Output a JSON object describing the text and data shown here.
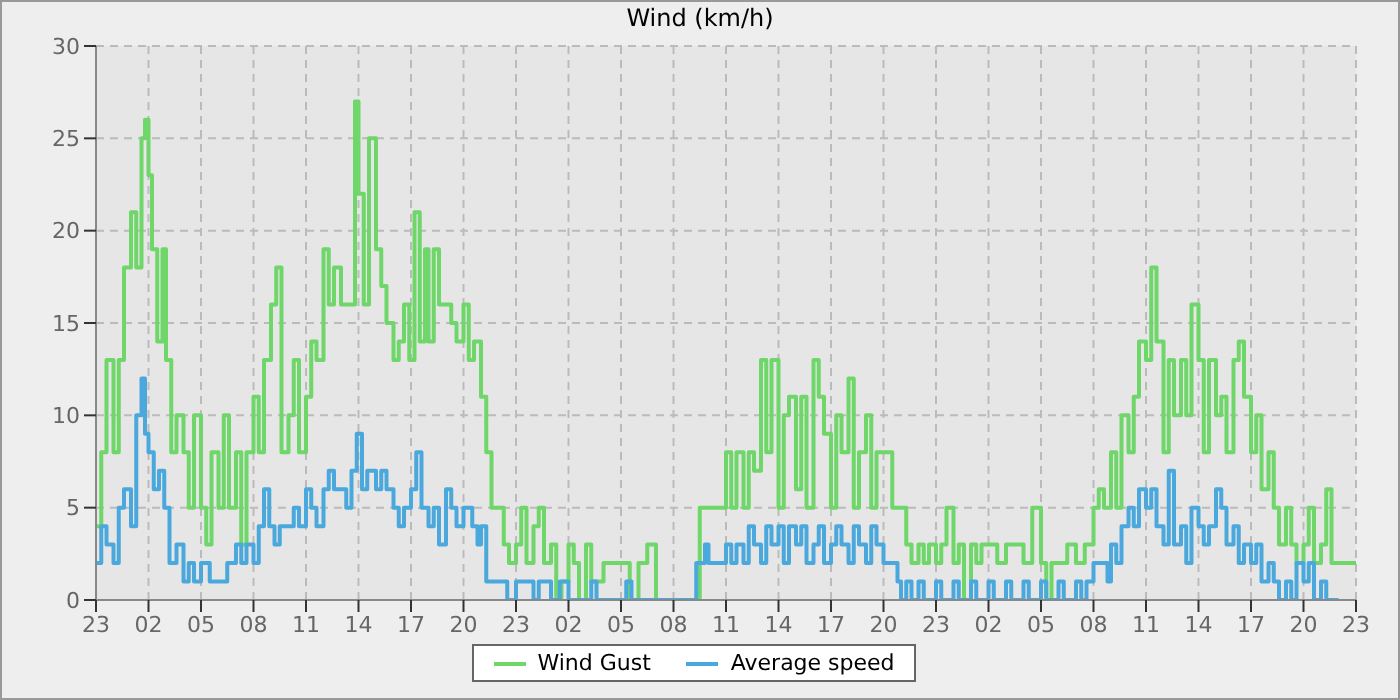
{
  "chart_data": {
    "type": "step",
    "title": "Wind (km/h)",
    "xlim": [
      "--01-01T23:00",
      "--01-04T23:00"
    ],
    "xticks": [
      {
        "value": "--01-01T23:00",
        "label": "23"
      },
      {
        "value": "--01-02T02:00",
        "label": "02"
      },
      {
        "value": "--01-02T05:00",
        "label": "05"
      },
      {
        "value": "--01-02T08:00",
        "label": "08"
      },
      {
        "value": "--01-02T11:00",
        "label": "11"
      },
      {
        "value": "--01-02T14:00",
        "label": "14"
      },
      {
        "value": "--01-02T17:00",
        "label": "17"
      },
      {
        "value": "--01-02T20:00",
        "label": "20"
      },
      {
        "value": "--01-02T23:00",
        "label": "23"
      },
      {
        "value": "--01-03T02:00",
        "label": "02"
      },
      {
        "value": "--01-03T05:00",
        "label": "05"
      },
      {
        "value": "--01-03T08:00",
        "label": "08"
      },
      {
        "value": "--01-03T11:00",
        "label": "11"
      },
      {
        "value": "--01-03T14:00",
        "label": "14"
      },
      {
        "value": "--01-03T17:00",
        "label": "17"
      },
      {
        "value": "--01-03T20:00",
        "label": "20"
      },
      {
        "value": "--01-03T23:00",
        "label": "23"
      },
      {
        "value": "--01-04T02:00",
        "label": "02"
      },
      {
        "value": "--01-04T05:00",
        "label": "05"
      },
      {
        "value": "--01-04T08:00",
        "label": "08"
      },
      {
        "value": "--01-04T11:00",
        "label": "11"
      },
      {
        "value": "--01-04T14:00",
        "label": "14"
      },
      {
        "value": "--01-04T17:00",
        "label": "17"
      },
      {
        "value": "--01-04T20:00",
        "label": "20"
      },
      {
        "value": "--01-04T23:00",
        "label": "23"
      }
    ],
    "ylim": [
      0,
      30
    ],
    "yticks": [
      0,
      5,
      10,
      15,
      20,
      25,
      30
    ],
    "grid": true,
    "legend": "bottom",
    "marker": "none",
    "line_style": "solid",
    "series": [
      {
        "name": "Wind Gust",
        "color": "#6fd66a",
        "x": [
          "--01-01T23:00",
          "--01-01T23:18",
          "--01-01T23:36",
          "--01-02T00:00",
          "--01-02T00:18",
          "--01-02T00:36",
          "--01-02T01:00",
          "--01-02T01:18",
          "--01-02T01:36",
          "--01-02T01:48",
          "--01-02T02:00",
          "--01-02T02:12",
          "--01-02T02:30",
          "--01-02T02:48",
          "--01-02T03:00",
          "--01-02T03:18",
          "--01-02T03:36",
          "--01-02T04:00",
          "--01-02T04:18",
          "--01-02T04:36",
          "--01-02T05:00",
          "--01-02T05:18",
          "--01-02T05:36",
          "--01-02T06:00",
          "--01-02T06:18",
          "--01-02T06:36",
          "--01-02T07:00",
          "--01-02T07:18",
          "--01-02T07:36",
          "--01-02T08:00",
          "--01-02T08:18",
          "--01-02T08:36",
          "--01-02T09:00",
          "--01-02T09:18",
          "--01-02T09:36",
          "--01-02T10:00",
          "--01-02T10:18",
          "--01-02T10:36",
          "--01-02T11:00",
          "--01-02T11:18",
          "--01-02T11:36",
          "--01-02T12:00",
          "--01-02T12:18",
          "--01-02T12:36",
          "--01-02T13:00",
          "--01-02T13:30",
          "--01-02T13:48",
          "--01-02T14:00",
          "--01-02T14:18",
          "--01-02T14:36",
          "--01-02T15:00",
          "--01-02T15:18",
          "--01-02T15:36",
          "--01-02T16:00",
          "--01-02T16:18",
          "--01-02T16:36",
          "--01-02T16:54",
          "--01-02T17:12",
          "--01-02T17:30",
          "--01-02T17:48",
          "--01-02T18:00",
          "--01-02T18:18",
          "--01-02T18:36",
          "--01-02T19:00",
          "--01-02T19:18",
          "--01-02T19:36",
          "--01-02T20:00",
          "--01-02T20:18",
          "--01-02T20:36",
          "--01-02T21:00",
          "--01-02T21:18",
          "--01-02T21:36",
          "--01-02T22:00",
          "--01-02T22:18",
          "--01-02T22:36",
          "--01-02T23:00",
          "--01-02T23:18",
          "--01-02T23:36",
          "--01-03T00:00",
          "--01-03T00:18",
          "--01-03T00:36",
          "--01-03T01:00",
          "--01-03T01:18",
          "--01-03T01:36",
          "--01-03T02:00",
          "--01-03T02:18",
          "--01-03T02:36",
          "--01-03T03:00",
          "--01-03T03:18",
          "--01-03T03:36",
          "--01-03T04:00",
          "--01-03T05:00",
          "--01-03T05:30",
          "--01-03T06:00",
          "--01-03T06:30",
          "--01-03T07:00",
          "--01-03T07:18",
          "--01-03T09:30",
          "--01-03T10:30",
          "--01-03T11:00",
          "--01-03T11:18",
          "--01-03T11:36",
          "--01-03T12:00",
          "--01-03T12:18",
          "--01-03T12:36",
          "--01-03T13:00",
          "--01-03T13:18",
          "--01-03T13:36",
          "--01-03T14:00",
          "--01-03T14:18",
          "--01-03T14:36",
          "--01-03T15:00",
          "--01-03T15:18",
          "--01-03T15:36",
          "--01-03T16:00",
          "--01-03T16:18",
          "--01-03T16:36",
          "--01-03T17:00",
          "--01-03T17:18",
          "--01-03T17:36",
          "--01-03T18:00",
          "--01-03T18:18",
          "--01-03T18:36",
          "--01-03T19:00",
          "--01-03T19:18",
          "--01-03T19:36",
          "--01-03T20:00",
          "--01-03T20:30",
          "--01-03T21:00",
          "--01-03T21:18",
          "--01-03T21:36",
          "--01-03T22:00",
          "--01-03T22:18",
          "--01-03T22:36",
          "--01-03T23:00",
          "--01-03T23:18",
          "--01-03T23:36",
          "--01-04T00:00",
          "--01-04T00:18",
          "--01-04T00:36",
          "--01-04T01:00",
          "--01-04T01:18",
          "--01-04T01:36",
          "--01-04T02:00",
          "--01-04T02:30",
          "--01-04T03:00",
          "--01-04T03:30",
          "--01-04T04:00",
          "--01-04T04:30",
          "--01-04T05:00",
          "--01-04T05:18",
          "--01-04T05:36",
          "--01-04T06:00",
          "--01-04T06:30",
          "--01-04T07:00",
          "--01-04T07:30",
          "--01-04T08:00",
          "--01-04T08:18",
          "--01-04T08:36",
          "--01-04T09:00",
          "--01-04T09:18",
          "--01-04T09:36",
          "--01-04T10:00",
          "--01-04T10:18",
          "--01-04T10:36",
          "--01-04T11:00",
          "--01-04T11:18",
          "--01-04T11:36",
          "--01-04T12:00",
          "--01-04T12:18",
          "--01-04T12:36",
          "--01-04T13:00",
          "--01-04T13:18",
          "--01-04T13:36",
          "--01-04T14:00",
          "--01-04T14:18",
          "--01-04T14:36",
          "--01-04T15:00",
          "--01-04T15:18",
          "--01-04T15:36",
          "--01-04T16:00",
          "--01-04T16:18",
          "--01-04T16:36",
          "--01-04T17:00",
          "--01-04T17:18",
          "--01-04T17:36",
          "--01-04T18:00",
          "--01-04T18:18",
          "--01-04T18:36",
          "--01-04T19:00",
          "--01-04T19:18",
          "--01-04T19:36",
          "--01-04T20:00",
          "--01-04T20:18",
          "--01-04T20:36",
          "--01-04T21:00",
          "--01-04T21:18",
          "--01-04T21:36",
          "--01-04T22:00",
          "--01-04T23:00"
        ],
        "values": [
          4,
          8,
          13,
          8,
          13,
          18,
          21,
          18,
          25,
          26,
          23,
          19,
          14,
          19,
          13,
          8,
          10,
          8,
          5,
          10,
          5,
          3,
          8,
          5,
          10,
          5,
          8,
          3,
          8,
          11,
          8,
          13,
          16,
          18,
          8,
          10,
          13,
          8,
          11,
          14,
          13,
          19,
          16,
          18,
          16,
          16,
          27,
          22,
          16,
          25,
          19,
          17,
          15,
          13,
          14,
          16,
          13,
          21,
          14,
          19,
          14,
          19,
          16,
          16,
          15,
          14,
          16,
          13,
          14,
          11,
          8,
          5,
          5,
          3,
          2,
          3,
          5,
          2,
          4,
          5,
          2,
          3,
          0,
          1,
          3,
          2,
          0,
          3,
          1,
          1,
          2,
          2,
          0,
          2,
          3,
          0,
          0,
          5,
          5,
          8,
          5,
          8,
          5,
          8,
          7,
          13,
          8,
          13,
          5,
          10,
          11,
          6,
          11,
          5,
          13,
          11,
          9,
          5,
          10,
          8,
          12,
          5,
          8,
          10,
          5,
          8,
          8,
          5,
          5,
          3,
          2,
          3,
          2,
          3,
          2,
          3,
          5,
          2,
          3,
          0,
          3,
          2,
          3,
          3,
          2,
          3,
          3,
          2,
          5,
          2,
          0,
          2,
          2,
          3,
          2,
          3,
          5,
          6,
          5,
          8,
          5,
          10,
          8,
          11,
          14,
          13,
          18,
          14,
          8,
          13,
          10,
          13,
          10,
          16,
          13,
          8,
          13,
          10,
          11,
          8,
          13,
          14,
          11,
          8,
          10,
          6,
          8,
          5,
          3,
          5,
          3,
          2,
          3,
          5,
          2,
          3,
          6,
          2,
          2,
          2
        ]
      },
      {
        "name": "Average speed",
        "color": "#4aa8dc",
        "x": [
          "--01-01T23:00",
          "--01-01T23:18",
          "--01-01T23:36",
          "--01-02T00:00",
          "--01-02T00:18",
          "--01-02T00:36",
          "--01-02T01:00",
          "--01-02T01:18",
          "--01-02T01:36",
          "--01-02T01:48",
          "--01-02T02:00",
          "--01-02T02:18",
          "--01-02T02:36",
          "--01-02T02:54",
          "--01-02T03:12",
          "--01-02T03:36",
          "--01-02T04:00",
          "--01-02T04:18",
          "--01-02T04:36",
          "--01-02T05:00",
          "--01-02T05:30",
          "--01-02T06:00",
          "--01-02T06:30",
          "--01-02T07:00",
          "--01-02T07:18",
          "--01-02T07:36",
          "--01-02T08:00",
          "--01-02T08:18",
          "--01-02T08:36",
          "--01-02T08:54",
          "--01-02T09:12",
          "--01-02T09:30",
          "--01-02T10:00",
          "--01-02T10:18",
          "--01-02T10:36",
          "--01-02T11:00",
          "--01-02T11:18",
          "--01-02T11:36",
          "--01-02T12:00",
          "--01-02T12:18",
          "--01-02T12:36",
          "--01-02T13:00",
          "--01-02T13:18",
          "--01-02T13:36",
          "--01-02T13:54",
          "--01-02T14:12",
          "--01-02T14:30",
          "--01-02T15:00",
          "--01-02T15:18",
          "--01-02T15:36",
          "--01-02T16:00",
          "--01-02T16:18",
          "--01-02T16:36",
          "--01-02T17:00",
          "--01-02T17:18",
          "--01-02T17:36",
          "--01-02T18:00",
          "--01-02T18:18",
          "--01-02T18:36",
          "--01-02T19:00",
          "--01-02T19:18",
          "--01-02T19:36",
          "--01-02T20:00",
          "--01-02T20:30",
          "--01-02T20:48",
          "--01-02T21:00",
          "--01-02T21:18",
          "--01-02T22:00",
          "--01-02T22:30",
          "--01-02T23:00",
          "--01-02T23:30",
          "--01-03T00:00",
          "--01-03T00:18",
          "--01-03T01:00",
          "--01-03T01:30",
          "--01-03T02:00",
          "--01-03T03:00",
          "--01-03T03:18",
          "--01-03T03:36",
          "--01-03T05:00",
          "--01-03T05:18",
          "--01-03T05:36",
          "--01-03T07:30",
          "--01-03T09:18",
          "--01-03T09:48",
          "--01-03T10:00",
          "--01-03T10:30",
          "--01-03T11:00",
          "--01-03T11:18",
          "--01-03T11:36",
          "--01-03T12:00",
          "--01-03T12:18",
          "--01-03T12:36",
          "--01-03T13:00",
          "--01-03T13:18",
          "--01-03T13:36",
          "--01-03T14:00",
          "--01-03T14:18",
          "--01-03T14:36",
          "--01-03T15:00",
          "--01-03T15:18",
          "--01-03T15:36",
          "--01-03T16:00",
          "--01-03T16:18",
          "--01-03T16:36",
          "--01-03T17:00",
          "--01-03T17:18",
          "--01-03T17:36",
          "--01-03T18:00",
          "--01-03T18:18",
          "--01-03T18:36",
          "--01-03T19:00",
          "--01-03T19:18",
          "--01-03T19:36",
          "--01-03T20:00",
          "--01-03T20:30",
          "--01-03T20:48",
          "--01-03T21:00",
          "--01-03T21:18",
          "--01-03T21:36",
          "--01-03T22:00",
          "--01-03T22:18",
          "--01-03T23:00",
          "--01-03T23:18",
          "--01-04T00:00",
          "--01-04T00:18",
          "--01-04T01:00",
          "--01-04T01:18",
          "--01-04T02:00",
          "--01-04T02:18",
          "--01-04T03:00",
          "--01-04T03:18",
          "--01-04T04:00",
          "--01-04T04:18",
          "--01-04T05:00",
          "--01-04T05:18",
          "--01-04T06:00",
          "--01-04T06:18",
          "--01-04T07:00",
          "--01-04T07:18",
          "--01-04T07:36",
          "--01-04T08:00",
          "--01-04T08:30",
          "--01-04T08:48",
          "--01-04T09:00",
          "--01-04T09:18",
          "--01-04T09:36",
          "--01-04T10:00",
          "--01-04T10:18",
          "--01-04T10:36",
          "--01-04T11:00",
          "--01-04T11:18",
          "--01-04T11:36",
          "--01-04T12:00",
          "--01-04T12:18",
          "--01-04T12:36",
          "--01-04T13:00",
          "--01-04T13:18",
          "--01-04T13:36",
          "--01-04T14:00",
          "--01-04T14:18",
          "--01-04T14:36",
          "--01-04T15:00",
          "--01-04T15:18",
          "--01-04T15:36",
          "--01-04T16:00",
          "--01-04T16:18",
          "--01-04T16:36",
          "--01-04T17:00",
          "--01-04T17:18",
          "--01-04T17:36",
          "--01-04T18:00",
          "--01-04T18:18",
          "--01-04T18:36",
          "--01-04T19:00",
          "--01-04T19:18",
          "--01-04T19:36",
          "--01-04T20:00",
          "--01-04T20:18",
          "--01-04T20:36",
          "--01-04T21:00",
          "--01-04T21:18",
          "--01-04T22:00"
        ],
        "values": [
          2,
          4,
          3,
          2,
          5,
          6,
          4,
          10,
          12,
          9,
          8,
          6,
          7,
          5,
          2,
          3,
          1,
          2,
          1,
          2,
          1,
          1,
          2,
          3,
          2,
          3,
          2,
          4,
          6,
          4,
          3,
          4,
          4,
          5,
          4,
          6,
          5,
          4,
          6,
          7,
          6,
          6,
          5,
          7,
          9,
          6,
          7,
          6,
          7,
          6,
          5,
          4,
          5,
          6,
          8,
          5,
          4,
          5,
          3,
          6,
          5,
          4,
          5,
          4,
          3,
          4,
          1,
          1,
          0,
          1,
          1,
          0,
          1,
          0,
          1,
          0,
          0,
          1,
          0,
          0,
          1,
          0,
          0,
          2,
          3,
          2,
          2,
          3,
          2,
          3,
          2,
          4,
          3,
          2,
          4,
          3,
          4,
          2,
          4,
          3,
          4,
          2,
          3,
          4,
          2,
          3,
          4,
          3,
          2,
          4,
          3,
          2,
          4,
          3,
          2,
          2,
          1,
          0,
          1,
          0,
          1,
          0,
          1,
          0,
          1,
          0,
          1,
          0,
          1,
          0,
          1,
          0,
          1,
          0,
          1,
          0,
          1,
          0,
          1,
          0,
          1,
          2,
          2,
          1,
          3,
          2,
          4,
          5,
          4,
          6,
          5,
          6,
          4,
          3,
          7,
          3,
          4,
          2,
          5,
          4,
          3,
          4,
          6,
          5,
          3,
          4,
          2,
          3,
          2,
          3,
          1,
          2,
          1,
          0,
          1,
          0,
          2,
          1,
          2,
          0,
          1,
          0,
          0
        ]
      }
    ]
  }
}
